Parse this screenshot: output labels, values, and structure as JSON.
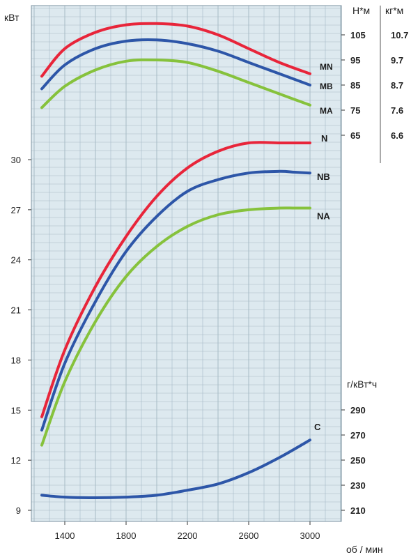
{
  "chart_data": {
    "type": "line",
    "x_axis": {
      "label": "об / мин",
      "ticks": [
        1400,
        1800,
        2200,
        2600,
        3000
      ],
      "range": [
        1200,
        3100
      ]
    },
    "left_axis": {
      "unit": "кВт",
      "ticks": [
        9,
        12,
        15,
        18,
        21,
        24,
        27,
        30
      ],
      "range": [
        8.4,
        33
      ]
    },
    "torque_axis_nm": {
      "unit": "Н*м",
      "ticks": [
        65,
        75,
        85,
        95,
        105
      ]
    },
    "torque_axis_kgm": {
      "unit": "кг*м",
      "ticks": [
        "6.6",
        "7.6",
        "8.7",
        "9.7",
        "10.7"
      ]
    },
    "consumption_axis": {
      "unit": "г/кВт*ч",
      "ticks": [
        210,
        230,
        250,
        270,
        290
      ]
    },
    "grid": true,
    "colors": {
      "background": "#dde9ef",
      "grid": "#9fb3bf",
      "red": "#e8253a",
      "blue": "#2d56a8",
      "green": "#86c23c"
    },
    "series": [
      {
        "name": "MN",
        "axis": "torque",
        "color": "#e8253a",
        "x": [
          1250,
          1400,
          1600,
          1800,
          2000,
          2200,
          2400,
          2600,
          2800,
          3000
        ],
        "y": [
          88.5,
          99.5,
          106,
          109,
          109.5,
          108.5,
          105,
          99.5,
          94,
          89.5
        ]
      },
      {
        "name": "MB",
        "axis": "torque",
        "color": "#2d56a8",
        "x": [
          1250,
          1400,
          1600,
          1800,
          2000,
          2200,
          2400,
          2600,
          2800,
          3000
        ],
        "y": [
          83.5,
          93,
          99.5,
          102.5,
          103,
          101.5,
          98.5,
          94,
          89.5,
          85
        ]
      },
      {
        "name": "MA",
        "axis": "torque",
        "color": "#86c23c",
        "x": [
          1250,
          1400,
          1600,
          1800,
          2000,
          2200,
          2400,
          2600,
          2800,
          3000
        ],
        "y": [
          76,
          84.5,
          91,
          94.5,
          95,
          94,
          90.5,
          86,
          81.5,
          77
        ]
      },
      {
        "name": "N",
        "axis": "power",
        "color": "#e8253a",
        "x": [
          1250,
          1400,
          1600,
          1800,
          2000,
          2200,
          2400,
          2600,
          2800,
          2900,
          3000
        ],
        "y": [
          14.6,
          18.6,
          22.4,
          25.4,
          27.8,
          29.5,
          30.5,
          31.0,
          31.0,
          31.0,
          31.0
        ]
      },
      {
        "name": "NB",
        "axis": "power",
        "color": "#2d56a8",
        "x": [
          1250,
          1400,
          1600,
          1800,
          2000,
          2200,
          2400,
          2600,
          2800,
          2900,
          3000
        ],
        "y": [
          13.8,
          17.8,
          21.5,
          24.5,
          26.6,
          28.1,
          28.8,
          29.2,
          29.3,
          29.25,
          29.2
        ]
      },
      {
        "name": "NA",
        "axis": "power",
        "color": "#86c23c",
        "x": [
          1250,
          1400,
          1600,
          1800,
          2000,
          2200,
          2400,
          2600,
          2800,
          2900,
          3000
        ],
        "y": [
          12.9,
          16.7,
          20.3,
          23.0,
          24.8,
          26.0,
          26.7,
          27.0,
          27.1,
          27.1,
          27.1
        ]
      },
      {
        "name": "C",
        "axis": "consumption",
        "color": "#2d56a8",
        "x": [
          1250,
          1400,
          1600,
          1800,
          2000,
          2200,
          2400,
          2600,
          2800,
          3000
        ],
        "y": [
          222,
          220.5,
          220,
          220.5,
          222,
          226,
          231,
          240,
          252,
          266
        ]
      }
    ]
  }
}
